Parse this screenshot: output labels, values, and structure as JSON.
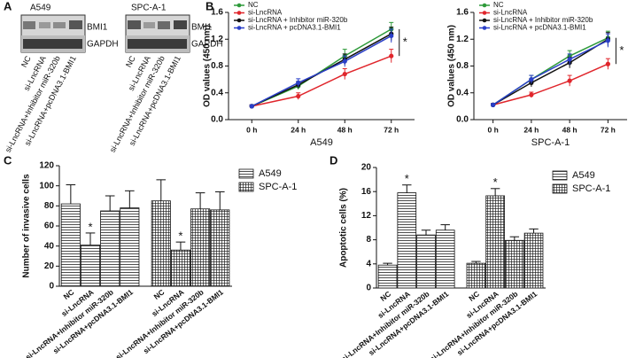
{
  "blot": {
    "panel_label": "A",
    "cell_lines": [
      "A549",
      "SPC-A-1"
    ],
    "proteins": [
      "BMI1",
      "GAPDH"
    ],
    "lanes": [
      "NC",
      "si-LncRNA",
      "si-LncRNA+Inhibitor miR-320b",
      "si-LncRNA+pcDNA3.1-BMI1"
    ]
  },
  "chart_data": [
    {
      "type": "line",
      "panel_label": "B",
      "xlabel": "A549",
      "ylabel": "OD values (450 nm)",
      "categories": [
        "0 h",
        "24 h",
        "48 h",
        "72 h"
      ],
      "ylim": [
        0,
        1.6
      ],
      "yticks": [
        {
          "value": 0,
          "label": "0.0"
        },
        0.4,
        0.8,
        1.2,
        1.6
      ],
      "legend": "upper left",
      "annotation": "*",
      "series": [
        {
          "name": "NC",
          "color": "#2e9a3a",
          "values": [
            0.2,
            0.5,
            0.95,
            1.35
          ],
          "errors": [
            0.02,
            0.05,
            0.1,
            0.1
          ]
        },
        {
          "name": "si-LncRNA",
          "color": "#e0262c",
          "values": [
            0.2,
            0.35,
            0.68,
            0.95
          ],
          "errors": [
            0.02,
            0.05,
            0.08,
            0.1
          ]
        },
        {
          "name": "si-LncRNA + Inhibitor miR-320b",
          "color": "#111111",
          "values": [
            0.2,
            0.52,
            0.9,
            1.28
          ],
          "errors": [
            0.02,
            0.05,
            0.08,
            0.1
          ]
        },
        {
          "name": "si-LncRNA + pcDNA3.1-BMI1",
          "color": "#2a3fc8",
          "values": [
            0.2,
            0.55,
            0.87,
            1.25
          ],
          "errors": [
            0.02,
            0.06,
            0.08,
            0.1
          ]
        }
      ]
    },
    {
      "type": "line",
      "xlabel": "SPC-A-1",
      "ylabel": "OD values (450 nm)",
      "categories": [
        "0 h",
        "24 h",
        "48 h",
        "72 h"
      ],
      "ylim": [
        0,
        1.6
      ],
      "yticks": [
        {
          "value": 0,
          "label": "0.0"
        },
        0.4,
        0.8,
        1.2,
        1.6
      ],
      "legend": "upper left",
      "annotation": "*",
      "series": [
        {
          "name": "NC",
          "color": "#2e9a3a",
          "values": [
            0.22,
            0.6,
            0.95,
            1.22
          ],
          "errors": [
            0.02,
            0.06,
            0.08,
            0.1
          ]
        },
        {
          "name": "si-LncRNA",
          "color": "#e0262c",
          "values": [
            0.22,
            0.37,
            0.58,
            0.83
          ],
          "errors": [
            0.02,
            0.04,
            0.08,
            0.08
          ]
        },
        {
          "name": "si-LncRNA + Inhibitor miR-320b",
          "color": "#111111",
          "values": [
            0.22,
            0.55,
            0.85,
            1.2
          ],
          "errors": [
            0.02,
            0.06,
            0.08,
            0.1
          ]
        },
        {
          "name": "si-LncRNA + pcDNA3.1-BMI1",
          "color": "#2a3fc8",
          "values": [
            0.22,
            0.6,
            0.9,
            1.18
          ],
          "errors": [
            0.02,
            0.06,
            0.08,
            0.1
          ]
        }
      ]
    },
    {
      "type": "bar",
      "panel_label": "C",
      "ylabel": "Number of invasive cells",
      "categories": [
        "NC",
        "si-LncRNA",
        "si-LncRNA+Inhibitor miR-320b",
        "si-LncRNA+pcDNA3.1-BMI1"
      ],
      "ylim": [
        0,
        120
      ],
      "yticks": [
        0,
        20,
        40,
        60,
        80,
        100,
        120
      ],
      "series": [
        {
          "name": "A549",
          "pattern": "horizontal",
          "values": [
            82,
            41,
            75,
            78
          ],
          "errors": [
            19,
            12,
            15,
            17
          ],
          "annotations": [
            null,
            "*",
            null,
            null
          ]
        },
        {
          "name": "SPC-A-1",
          "pattern": "grid",
          "values": [
            85,
            36,
            77,
            76
          ],
          "errors": [
            21,
            8,
            16,
            18
          ],
          "annotations": [
            null,
            "*",
            null,
            null
          ]
        }
      ]
    },
    {
      "type": "bar",
      "panel_label": "D",
      "ylabel": "Apoptotic cells (%)",
      "categories": [
        "NC",
        "si-LncRNA",
        "si-LncRNA+Inhibitor miR-320b",
        "si-LncRNA+pcDNA3.1-BMI1"
      ],
      "ylim": [
        0,
        20
      ],
      "yticks": [
        0,
        4,
        8,
        12,
        16,
        20
      ],
      "series": [
        {
          "name": "A549",
          "pattern": "horizontal",
          "values": [
            3.8,
            15.8,
            8.8,
            9.6
          ],
          "errors": [
            0.3,
            1.3,
            0.8,
            0.9
          ],
          "annotations": [
            null,
            "*",
            null,
            null
          ]
        },
        {
          "name": "SPC-A-1",
          "pattern": "grid",
          "values": [
            4.1,
            15.3,
            7.9,
            9.1
          ],
          "errors": [
            0.3,
            1.2,
            0.6,
            0.7
          ],
          "annotations": [
            null,
            "*",
            null,
            null
          ]
        }
      ]
    }
  ]
}
